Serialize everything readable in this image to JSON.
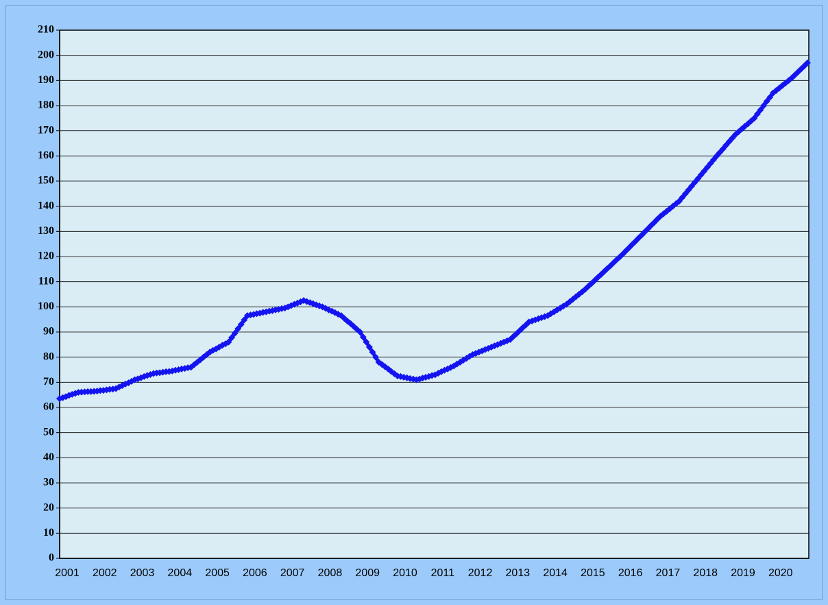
{
  "chart_data": {
    "type": "line",
    "categories": [
      "2001",
      null,
      null,
      null,
      null,
      null,
      null,
      null,
      null,
      null,
      null,
      null,
      "2002",
      null,
      null,
      null,
      null,
      null,
      null,
      null,
      null,
      null,
      null,
      null,
      "2003",
      null,
      null,
      null,
      null,
      null,
      null,
      null,
      null,
      null,
      null,
      null,
      "2004",
      null,
      null,
      null,
      null,
      null,
      null,
      null,
      null,
      null,
      null,
      null,
      "2005",
      null,
      null,
      null,
      null,
      null,
      null,
      null,
      null,
      null,
      null,
      null,
      "2006",
      null,
      null,
      null,
      null,
      null,
      null,
      null,
      null,
      null,
      null,
      null,
      "2007",
      null,
      null,
      null,
      null,
      null,
      null,
      null,
      null,
      null,
      null,
      null,
      "2008",
      null,
      null,
      null,
      null,
      null,
      null,
      null,
      null,
      null,
      null,
      null,
      "2009",
      null,
      null,
      null,
      null,
      null,
      null,
      null,
      null,
      null,
      null,
      null,
      "2010",
      null,
      null,
      null,
      null,
      null,
      null,
      null,
      null,
      null,
      null,
      null,
      "2011",
      null,
      null,
      null,
      null,
      null,
      null,
      null,
      null,
      null,
      null,
      null,
      "2012",
      null,
      null,
      null,
      null,
      null,
      null,
      null,
      null,
      null,
      null,
      null,
      "2013",
      null,
      null,
      null,
      null,
      null,
      null,
      null,
      null,
      null,
      null,
      null,
      "2014",
      null,
      null,
      null,
      null,
      null,
      null,
      null,
      null,
      null,
      null,
      null,
      "2015",
      null,
      null,
      null,
      null,
      null,
      null,
      null,
      null,
      null,
      null,
      null,
      "2016",
      null,
      null,
      null,
      null,
      null,
      null,
      null,
      null,
      null,
      null,
      null,
      "2017",
      null,
      null,
      null,
      null,
      null,
      null,
      null,
      null,
      null,
      null,
      null,
      "2018",
      null,
      null,
      null,
      null,
      null,
      null,
      null,
      null,
      null,
      null,
      null,
      "2019",
      null,
      null,
      null,
      null,
      null,
      null,
      null,
      null,
      null,
      null,
      null,
      "2020",
      null,
      null,
      null,
      null,
      null,
      null,
      null,
      null,
      null,
      null,
      null
    ],
    "values": [
      63.5,
      63.9,
      64.3,
      64.8,
      65.2,
      65.6,
      66,
      66.1,
      66.2,
      66.3,
      66.3,
      66.4,
      66.5,
      66.7,
      66.8,
      67,
      67.2,
      67.3,
      67.5,
      68.1,
      68.7,
      69.3,
      69.8,
      70.4,
      71,
      71.4,
      71.8,
      72.3,
      72.7,
      73.1,
      73.5,
      73.7,
      73.8,
      74,
      74.2,
      74.3,
      74.5,
      74.8,
      75,
      75.3,
      75.5,
      75.8,
      76,
      77,
      78,
      79,
      80,
      81,
      82,
      82.7,
      83.3,
      84,
      84.7,
      85.3,
      86,
      87.8,
      89.5,
      91.3,
      93,
      94.8,
      96.5,
      96.8,
      97,
      97.3,
      97.5,
      97.8,
      98,
      98.3,
      98.5,
      98.8,
      99,
      99.3,
      99.5,
      100,
      100.5,
      101,
      101.5,
      102,
      102.5,
      102.1,
      101.7,
      101.3,
      100.8,
      100.4,
      100,
      99.4,
      98.8,
      98.3,
      97.7,
      97.1,
      96.5,
      95.4,
      94.3,
      93.3,
      92.2,
      91.1,
      90,
      88,
      86,
      84,
      82,
      80,
      78,
      77.1,
      76.2,
      75.3,
      74.3,
      73.4,
      72.5,
      72.3,
      72,
      71.8,
      71.5,
      71.3,
      71,
      71.3,
      71.7,
      72,
      72.3,
      72.7,
      73,
      73.6,
      74.2,
      74.8,
      75.3,
      75.9,
      76.5,
      77.3,
      78,
      78.8,
      79.5,
      80.3,
      81,
      81.5,
      82,
      82.5,
      83,
      83.5,
      84,
      84.5,
      85,
      85.5,
      86,
      86.5,
      87,
      88.2,
      89.3,
      90.5,
      91.7,
      92.8,
      94,
      94.4,
      94.8,
      95.3,
      95.7,
      96.1,
      96.5,
      97.3,
      98,
      98.8,
      99.5,
      100.3,
      101,
      102,
      103,
      104,
      105,
      106,
      107,
      108.2,
      109.3,
      110.5,
      111.7,
      112.8,
      114,
      115.2,
      116.3,
      117.5,
      118.7,
      119.8,
      121,
      122.3,
      123.5,
      124.8,
      126,
      127.3,
      128.5,
      129.8,
      131,
      132.3,
      133.5,
      134.8,
      136,
      137,
      138,
      139,
      140,
      141,
      142,
      143.5,
      145,
      146.5,
      148,
      149.5,
      151,
      152.5,
      154,
      155.5,
      157,
      158.5,
      160,
      161.4,
      162.8,
      164.3,
      165.7,
      167.1,
      168.5,
      169.6,
      170.7,
      171.8,
      172.8,
      173.9,
      175,
      176.7,
      178.3,
      180,
      181.7,
      183.3,
      185,
      186,
      187,
      188,
      189,
      190,
      191,
      192.2,
      193.4,
      194.6,
      195.8,
      197
    ],
    "color": "#1414f0",
    "ylim": [
      0,
      210
    ],
    "yticks": [
      0,
      10,
      20,
      30,
      40,
      50,
      60,
      70,
      80,
      90,
      100,
      110,
      120,
      130,
      140,
      150,
      160,
      170,
      180,
      190,
      200,
      210
    ],
    "grid": true
  }
}
